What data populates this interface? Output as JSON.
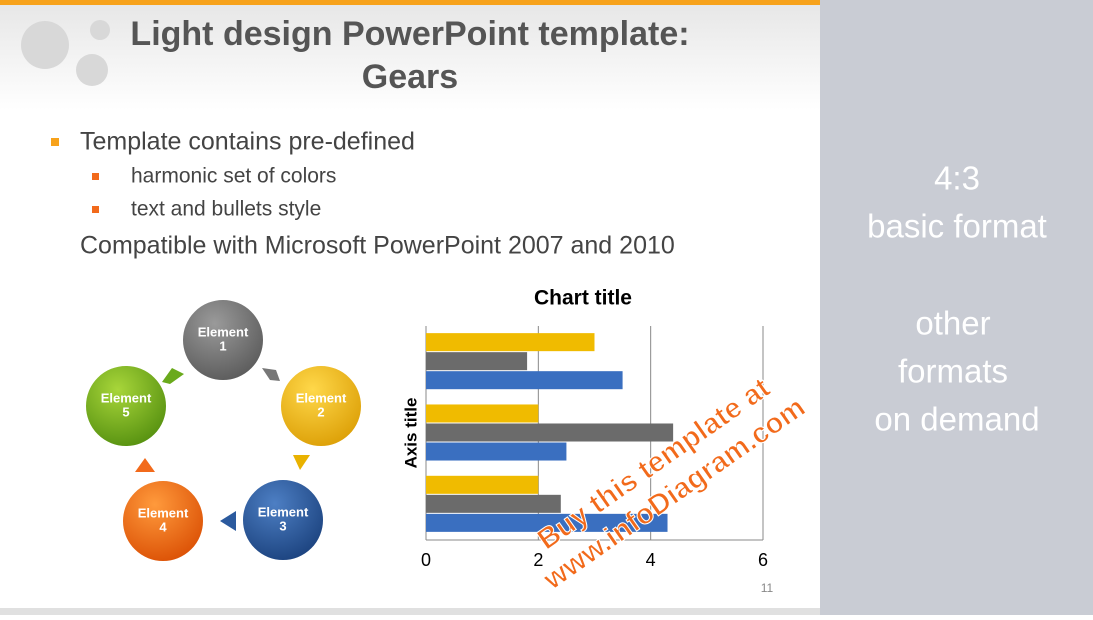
{
  "slide": {
    "title_lines": [
      "Light design PowerPoint template:",
      "Gears"
    ],
    "bullets": [
      "Template contains pre-defined",
      "harmonic set of colors",
      "text and bullets style"
    ],
    "plain_line": "Compatible with Microsoft PowerPoint 2007 and 2010",
    "cycle": [
      {
        "lines": [
          "Element",
          "1"
        ]
      },
      {
        "lines": [
          "Element",
          "2"
        ]
      },
      {
        "lines": [
          "Element",
          "3"
        ]
      },
      {
        "lines": [
          "Element",
          "4"
        ]
      },
      {
        "lines": [
          "Element",
          "5"
        ]
      }
    ],
    "watermark_lines": [
      "Buy this template at",
      "www.infoDiagram.com"
    ],
    "page_number": "11"
  },
  "side_panel": {
    "lines": [
      "4:3",
      "basic format",
      "other",
      "formats",
      "on demand"
    ]
  },
  "chart_data": {
    "type": "bar",
    "horizontal": true,
    "title": "Chart title",
    "y_label": "Axis title",
    "categories": [
      null,
      null,
      null
    ],
    "series": [
      {
        "color": "#3a6fc0",
        "values": [
          4.3,
          2.5,
          3.5
        ]
      },
      {
        "color": "#6b6b6b",
        "values": [
          2.4,
          4.4,
          1.8
        ]
      },
      {
        "color": "#f0bb00",
        "values": [
          2.0,
          2.0,
          3.0
        ]
      }
    ],
    "xlim": [
      0,
      6
    ],
    "xticks": [
      0,
      2,
      4,
      6
    ],
    "grid": true
  }
}
